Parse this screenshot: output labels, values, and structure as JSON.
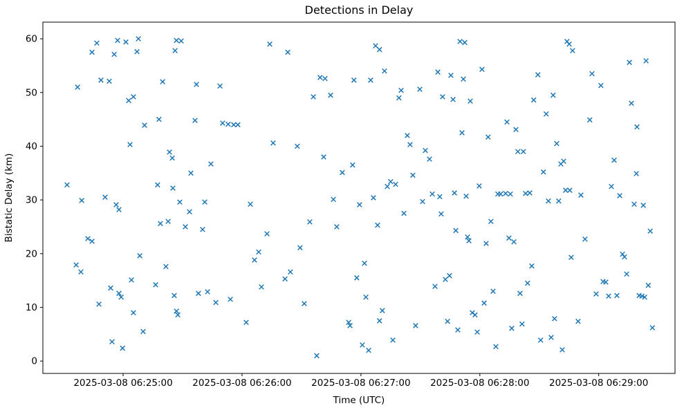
{
  "figure": {
    "background": "#ffffff",
    "plot_background": "#ffffff",
    "spine_color": "#000000"
  },
  "chart_data": {
    "type": "scatter",
    "title": "Detections in Delay",
    "xlabel": "Time (UTC)",
    "ylabel": "Bistatic Delay (km)",
    "marker_style": "x",
    "marker_color": "#1f77b4",
    "grid": false,
    "legend": "none",
    "x_unit": "seconds after 2025-03-08 06:24:00 UTC",
    "xlim": [
      19.5,
      338.5
    ],
    "ylim": [
      -2.3,
      63.1
    ],
    "x_ticks": [
      60,
      120,
      180,
      240,
      300
    ],
    "x_tick_labels": [
      "2025-03-08 06:25:00",
      "2025-03-08 06:26:00",
      "2025-03-08 06:27:00",
      "2025-03-08 06:28:00",
      "2025-03-08 06:29:00"
    ],
    "y_ticks": [
      0,
      10,
      20,
      30,
      40,
      50,
      60
    ],
    "y_tick_labels": [
      "0",
      "10",
      "20",
      "30",
      "40",
      "50",
      "60"
    ],
    "points": [
      [
        31.7,
        32.8
      ],
      [
        36.3,
        17.9
      ],
      [
        38.7,
        16.6
      ],
      [
        37.0,
        51.0
      ],
      [
        39.1,
        29.9
      ],
      [
        42.2,
        22.8
      ],
      [
        44.3,
        22.3
      ],
      [
        44.3,
        57.5
      ],
      [
        46.7,
        59.2
      ],
      [
        47.8,
        10.6
      ],
      [
        48.8,
        52.3
      ],
      [
        50.9,
        30.5
      ],
      [
        53.0,
        52.1
      ],
      [
        53.7,
        13.6
      ],
      [
        54.4,
        3.6
      ],
      [
        55.5,
        57.1
      ],
      [
        57.2,
        59.7
      ],
      [
        56.5,
        29.1
      ],
      [
        57.9,
        28.2
      ],
      [
        57.9,
        12.6
      ],
      [
        59.0,
        11.9
      ],
      [
        59.7,
        2.4
      ],
      [
        61.4,
        59.4
      ],
      [
        62.8,
        48.5
      ],
      [
        65.2,
        49.2
      ],
      [
        63.5,
        40.3
      ],
      [
        64.2,
        15.1
      ],
      [
        65.2,
        9.0
      ],
      [
        67.7,
        60.0
      ],
      [
        67.0,
        57.6
      ],
      [
        68.4,
        19.6
      ],
      [
        70.1,
        5.5
      ],
      [
        70.8,
        43.9
      ],
      [
        76.4,
        14.2
      ],
      [
        77.4,
        32.8
      ],
      [
        78.1,
        45.0
      ],
      [
        78.8,
        25.6
      ],
      [
        79.9,
        52.0
      ],
      [
        82.7,
        26.0
      ],
      [
        83.4,
        38.9
      ],
      [
        84.8,
        37.8
      ],
      [
        81.6,
        17.6
      ],
      [
        85.1,
        32.2
      ],
      [
        86.2,
        57.8
      ],
      [
        86.9,
        59.7
      ],
      [
        89.3,
        59.6
      ],
      [
        85.8,
        12.2
      ],
      [
        86.9,
        9.3
      ],
      [
        87.6,
        8.6
      ],
      [
        88.6,
        29.6
      ],
      [
        91.4,
        25.0
      ],
      [
        93.5,
        27.8
      ],
      [
        94.2,
        35.0
      ],
      [
        96.3,
        44.8
      ],
      [
        97.0,
        51.5
      ],
      [
        98.0,
        12.6
      ],
      [
        100.1,
        24.5
      ],
      [
        101.2,
        29.6
      ],
      [
        102.6,
        12.9
      ],
      [
        104.3,
        36.7
      ],
      [
        106.8,
        10.9
      ],
      [
        108.9,
        51.2
      ],
      [
        110.2,
        44.3
      ],
      [
        113.0,
        44.1
      ],
      [
        115.8,
        44.0
      ],
      [
        117.9,
        44.0
      ],
      [
        114.1,
        11.5
      ],
      [
        122.1,
        7.2
      ],
      [
        124.2,
        29.2
      ],
      [
        126.3,
        18.8
      ],
      [
        128.4,
        20.3
      ],
      [
        129.8,
        13.8
      ],
      [
        132.6,
        23.7
      ],
      [
        134.0,
        59.0
      ],
      [
        135.7,
        40.6
      ],
      [
        141.7,
        15.3
      ],
      [
        143.1,
        57.5
      ],
      [
        144.4,
        16.6
      ],
      [
        147.9,
        40.0
      ],
      [
        149.3,
        21.1
      ],
      [
        151.4,
        10.7
      ],
      [
        154.2,
        25.9
      ],
      [
        156.0,
        49.2
      ],
      [
        157.7,
        1.0
      ],
      [
        159.4,
        52.8
      ],
      [
        161.9,
        52.6
      ],
      [
        161.2,
        38.0
      ],
      [
        164.7,
        49.5
      ],
      [
        166.1,
        30.1
      ],
      [
        167.8,
        25.0
      ],
      [
        170.6,
        35.1
      ],
      [
        173.8,
        7.2
      ],
      [
        174.5,
        6.6
      ],
      [
        175.8,
        36.5
      ],
      [
        176.5,
        52.3
      ],
      [
        177.9,
        15.5
      ],
      [
        179.3,
        29.1
      ],
      [
        180.7,
        3.0
      ],
      [
        181.8,
        18.2
      ],
      [
        182.5,
        11.9
      ],
      [
        183.9,
        2.0
      ],
      [
        184.9,
        52.3
      ],
      [
        186.3,
        30.4
      ],
      [
        187.4,
        58.7
      ],
      [
        189.4,
        58.0
      ],
      [
        188.4,
        25.3
      ],
      [
        189.4,
        7.5
      ],
      [
        190.8,
        9.4
      ],
      [
        191.9,
        54.0
      ],
      [
        193.3,
        32.5
      ],
      [
        195.0,
        33.4
      ],
      [
        197.5,
        32.9
      ],
      [
        196.1,
        3.9
      ],
      [
        199.2,
        49.0
      ],
      [
        200.3,
        50.4
      ],
      [
        201.7,
        27.5
      ],
      [
        203.4,
        42.0
      ],
      [
        204.8,
        40.3
      ],
      [
        206.2,
        34.6
      ],
      [
        207.6,
        6.6
      ],
      [
        209.7,
        50.6
      ],
      [
        211.1,
        29.7
      ],
      [
        212.5,
        39.2
      ],
      [
        214.6,
        37.6
      ],
      [
        216.0,
        31.1
      ],
      [
        217.4,
        13.9
      ],
      [
        218.8,
        53.8
      ],
      [
        219.8,
        30.6
      ],
      [
        220.5,
        27.4
      ],
      [
        221.2,
        49.2
      ],
      [
        222.6,
        15.2
      ],
      [
        223.7,
        7.4
      ],
      [
        224.7,
        15.9
      ],
      [
        225.4,
        53.2
      ],
      [
        226.5,
        48.7
      ],
      [
        227.2,
        31.3
      ],
      [
        227.9,
        24.3
      ],
      [
        228.9,
        5.8
      ],
      [
        230.0,
        59.5
      ],
      [
        232.4,
        59.3
      ],
      [
        231.0,
        42.5
      ],
      [
        231.7,
        52.5
      ],
      [
        233.1,
        30.7
      ],
      [
        233.8,
        23.1
      ],
      [
        234.5,
        22.4
      ],
      [
        235.2,
        48.4
      ],
      [
        236.2,
        9.0
      ],
      [
        237.6,
        8.6
      ],
      [
        238.7,
        5.4
      ],
      [
        239.7,
        32.6
      ],
      [
        241.1,
        54.3
      ],
      [
        242.2,
        10.8
      ],
      [
        243.2,
        21.9
      ],
      [
        244.2,
        41.7
      ],
      [
        245.6,
        26.0
      ],
      [
        246.7,
        13.0
      ],
      [
        248.1,
        2.7
      ],
      [
        249.1,
        31.1
      ],
      [
        250.5,
        31.1
      ],
      [
        253.0,
        31.2
      ],
      [
        255.4,
        31.1
      ],
      [
        253.7,
        44.5
      ],
      [
        254.7,
        22.9
      ],
      [
        256.1,
        6.1
      ],
      [
        257.2,
        22.2
      ],
      [
        258.2,
        43.1
      ],
      [
        259.2,
        39.0
      ],
      [
        262.0,
        39.0
      ],
      [
        260.3,
        12.6
      ],
      [
        261.3,
        6.9
      ],
      [
        263.1,
        31.2
      ],
      [
        265.2,
        31.3
      ],
      [
        264.1,
        14.5
      ],
      [
        266.2,
        17.7
      ],
      [
        267.2,
        48.6
      ],
      [
        269.3,
        53.3
      ],
      [
        270.7,
        3.9
      ],
      [
        272.1,
        35.2
      ],
      [
        273.5,
        46.0
      ],
      [
        274.6,
        29.8
      ],
      [
        276.0,
        4.4
      ],
      [
        277.0,
        49.5
      ],
      [
        277.7,
        7.9
      ],
      [
        278.8,
        40.5
      ],
      [
        279.8,
        29.8
      ],
      [
        280.9,
        36.7
      ],
      [
        282.3,
        37.2
      ],
      [
        281.6,
        2.1
      ],
      [
        283.3,
        31.8
      ],
      [
        285.4,
        31.8
      ],
      [
        284.0,
        59.5
      ],
      [
        285.1,
        59.0
      ],
      [
        286.8,
        57.8
      ],
      [
        286.1,
        19.3
      ],
      [
        289.6,
        7.4
      ],
      [
        291.0,
        30.9
      ],
      [
        293.1,
        22.7
      ],
      [
        295.5,
        44.9
      ],
      [
        296.6,
        53.5
      ],
      [
        298.7,
        12.5
      ],
      [
        301.1,
        51.3
      ],
      [
        302.2,
        14.8
      ],
      [
        303.6,
        14.7
      ],
      [
        305.0,
        12.1
      ],
      [
        306.4,
        32.5
      ],
      [
        307.8,
        37.4
      ],
      [
        309.2,
        12.2
      ],
      [
        310.6,
        30.8
      ],
      [
        312.0,
        19.9
      ],
      [
        313.0,
        19.4
      ],
      [
        314.1,
        16.2
      ],
      [
        315.5,
        55.6
      ],
      [
        316.5,
        48.0
      ],
      [
        317.9,
        29.2
      ],
      [
        319.0,
        34.9
      ],
      [
        319.3,
        43.6
      ],
      [
        320.4,
        12.2
      ],
      [
        321.8,
        12.1
      ],
      [
        323.2,
        11.9
      ],
      [
        322.5,
        29.0
      ],
      [
        323.9,
        55.9
      ],
      [
        325.0,
        14.1
      ],
      [
        326.0,
        24.2
      ],
      [
        327.1,
        6.2
      ]
    ]
  }
}
